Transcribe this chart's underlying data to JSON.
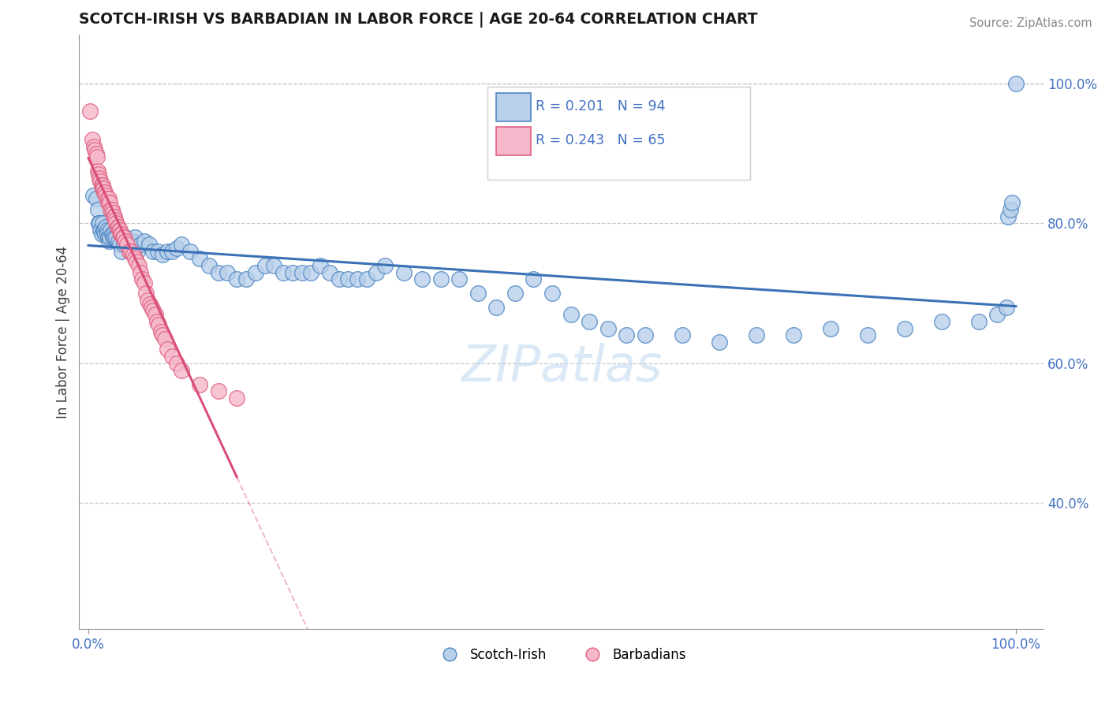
{
  "title": "SCOTCH-IRISH VS BARBADIAN IN LABOR FORCE | AGE 20-64 CORRELATION CHART",
  "source": "Source: ZipAtlas.com",
  "ylabel": "In Labor Force | Age 20-64",
  "y_ticks": [
    0.4,
    0.6,
    0.8,
    1.0
  ],
  "y_tick_labels": [
    "40.0%",
    "60.0%",
    "80.0%",
    "100.0%"
  ],
  "xlim": [
    -0.01,
    1.03
  ],
  "ylim": [
    0.22,
    1.07
  ],
  "watermark": "ZIPatlas",
  "blue_fill": "#b8d0ea",
  "blue_edge": "#4e86c4",
  "blue_line": "#3a72b5",
  "pink_fill": "#f5b8cb",
  "pink_edge": "#e06080",
  "pink_line": "#d94f78",
  "grid_color": "#c8c8c8",
  "tick_color": "#4472c4",
  "title_color": "#1a1a1a",
  "source_color": "#888888",
  "legend_R_blue": "R = 0.201",
  "legend_N_blue": "N = 94",
  "legend_R_pink": "R = 0.243",
  "legend_N_pink": "N = 65",
  "scotch_irish_x": [
    0.005,
    0.008,
    0.01,
    0.011,
    0.012,
    0.013,
    0.014,
    0.015,
    0.016,
    0.017,
    0.018,
    0.019,
    0.02,
    0.02,
    0.021,
    0.022,
    0.023,
    0.024,
    0.025,
    0.026,
    0.027,
    0.028,
    0.03,
    0.032,
    0.034,
    0.036,
    0.038,
    0.04,
    0.042,
    0.045,
    0.048,
    0.05,
    0.053,
    0.056,
    0.06,
    0.065,
    0.07,
    0.075,
    0.08,
    0.085,
    0.09,
    0.095,
    0.1,
    0.11,
    0.12,
    0.13,
    0.14,
    0.15,
    0.16,
    0.17,
    0.18,
    0.19,
    0.2,
    0.21,
    0.22,
    0.23,
    0.24,
    0.25,
    0.26,
    0.27,
    0.28,
    0.29,
    0.3,
    0.31,
    0.32,
    0.34,
    0.36,
    0.38,
    0.4,
    0.42,
    0.44,
    0.46,
    0.48,
    0.5,
    0.52,
    0.54,
    0.56,
    0.58,
    0.6,
    0.64,
    0.68,
    0.72,
    0.76,
    0.8,
    0.84,
    0.88,
    0.92,
    0.96,
    0.98,
    0.99,
    0.992,
    0.994,
    0.996,
    1.0
  ],
  "scotch_irish_y": [
    0.84,
    0.835,
    0.82,
    0.8,
    0.8,
    0.79,
    0.785,
    0.8,
    0.79,
    0.79,
    0.785,
    0.795,
    0.79,
    0.785,
    0.78,
    0.775,
    0.78,
    0.79,
    0.785,
    0.78,
    0.785,
    0.78,
    0.78,
    0.775,
    0.77,
    0.76,
    0.77,
    0.78,
    0.77,
    0.775,
    0.775,
    0.78,
    0.76,
    0.77,
    0.775,
    0.77,
    0.76,
    0.76,
    0.755,
    0.76,
    0.76,
    0.765,
    0.77,
    0.76,
    0.75,
    0.74,
    0.73,
    0.73,
    0.72,
    0.72,
    0.73,
    0.74,
    0.74,
    0.73,
    0.73,
    0.73,
    0.73,
    0.74,
    0.73,
    0.72,
    0.72,
    0.72,
    0.72,
    0.73,
    0.74,
    0.73,
    0.72,
    0.72,
    0.72,
    0.7,
    0.68,
    0.7,
    0.72,
    0.7,
    0.67,
    0.66,
    0.65,
    0.64,
    0.64,
    0.64,
    0.63,
    0.64,
    0.64,
    0.65,
    0.64,
    0.65,
    0.66,
    0.66,
    0.67,
    0.68,
    0.81,
    0.82,
    0.83,
    1.0
  ],
  "barbadian_x": [
    0.002,
    0.004,
    0.006,
    0.007,
    0.008,
    0.009,
    0.01,
    0.011,
    0.012,
    0.013,
    0.014,
    0.015,
    0.015,
    0.016,
    0.017,
    0.018,
    0.019,
    0.02,
    0.021,
    0.022,
    0.023,
    0.024,
    0.025,
    0.026,
    0.027,
    0.028,
    0.029,
    0.03,
    0.031,
    0.032,
    0.033,
    0.034,
    0.035,
    0.036,
    0.037,
    0.038,
    0.04,
    0.042,
    0.044,
    0.046,
    0.048,
    0.05,
    0.052,
    0.054,
    0.056,
    0.058,
    0.06,
    0.062,
    0.064,
    0.066,
    0.068,
    0.07,
    0.072,
    0.074,
    0.076,
    0.078,
    0.08,
    0.082,
    0.085,
    0.09,
    0.095,
    0.1,
    0.12,
    0.14,
    0.16
  ],
  "barbadian_y": [
    0.96,
    0.92,
    0.91,
    0.905,
    0.9,
    0.895,
    0.875,
    0.87,
    0.865,
    0.86,
    0.855,
    0.855,
    0.85,
    0.85,
    0.845,
    0.845,
    0.84,
    0.835,
    0.83,
    0.835,
    0.83,
    0.82,
    0.82,
    0.815,
    0.81,
    0.81,
    0.805,
    0.8,
    0.795,
    0.795,
    0.79,
    0.79,
    0.785,
    0.785,
    0.78,
    0.78,
    0.775,
    0.77,
    0.76,
    0.76,
    0.755,
    0.75,
    0.745,
    0.74,
    0.73,
    0.72,
    0.715,
    0.7,
    0.69,
    0.685,
    0.68,
    0.675,
    0.67,
    0.66,
    0.655,
    0.645,
    0.64,
    0.635,
    0.62,
    0.61,
    0.6,
    0.59,
    0.57,
    0.56,
    0.55
  ]
}
